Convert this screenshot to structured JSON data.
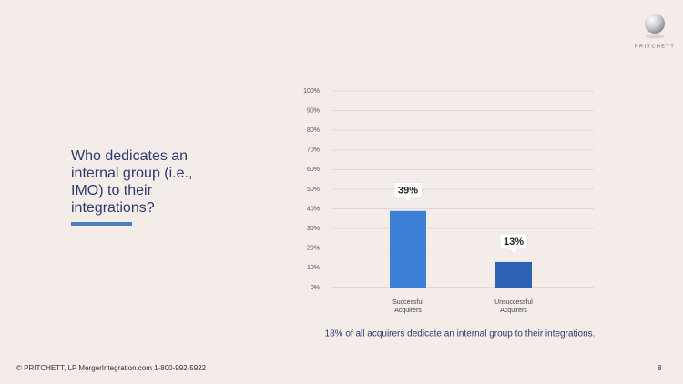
{
  "slide": {
    "title": "Who dedicates an internal group (i.e., IMO) to their integrations?",
    "logo": "PRITCHETT",
    "footer": "© PRITCHETT, LP MergerIntegration.com 1-800-992-5922",
    "page_number": "8"
  },
  "chart_data": {
    "type": "bar",
    "categories": [
      "Successful Acquirers",
      "Unsuccessful Acquirers"
    ],
    "values": [
      39,
      13
    ],
    "value_labels": [
      "39%",
      "13%"
    ],
    "colors": [
      "#3b7fd6",
      "#2b63b2"
    ],
    "ylim": [
      0,
      100
    ],
    "yticks": [
      {
        "value": 0,
        "label": "0%"
      },
      {
        "value": 10,
        "label": "10%"
      },
      {
        "value": 20,
        "label": "20%"
      },
      {
        "value": 30,
        "label": "30%"
      },
      {
        "value": 40,
        "label": "40%"
      },
      {
        "value": 50,
        "label": "50%"
      },
      {
        "value": 60,
        "label": "60%"
      },
      {
        "value": 70,
        "label": "70%"
      },
      {
        "value": 80,
        "label": "80%"
      },
      {
        "value": 90,
        "label": "90%"
      },
      {
        "value": 100,
        "label": "100%"
      }
    ],
    "grid": true,
    "note": "18% of all acquirers dedicate an internal group to their integrations."
  }
}
